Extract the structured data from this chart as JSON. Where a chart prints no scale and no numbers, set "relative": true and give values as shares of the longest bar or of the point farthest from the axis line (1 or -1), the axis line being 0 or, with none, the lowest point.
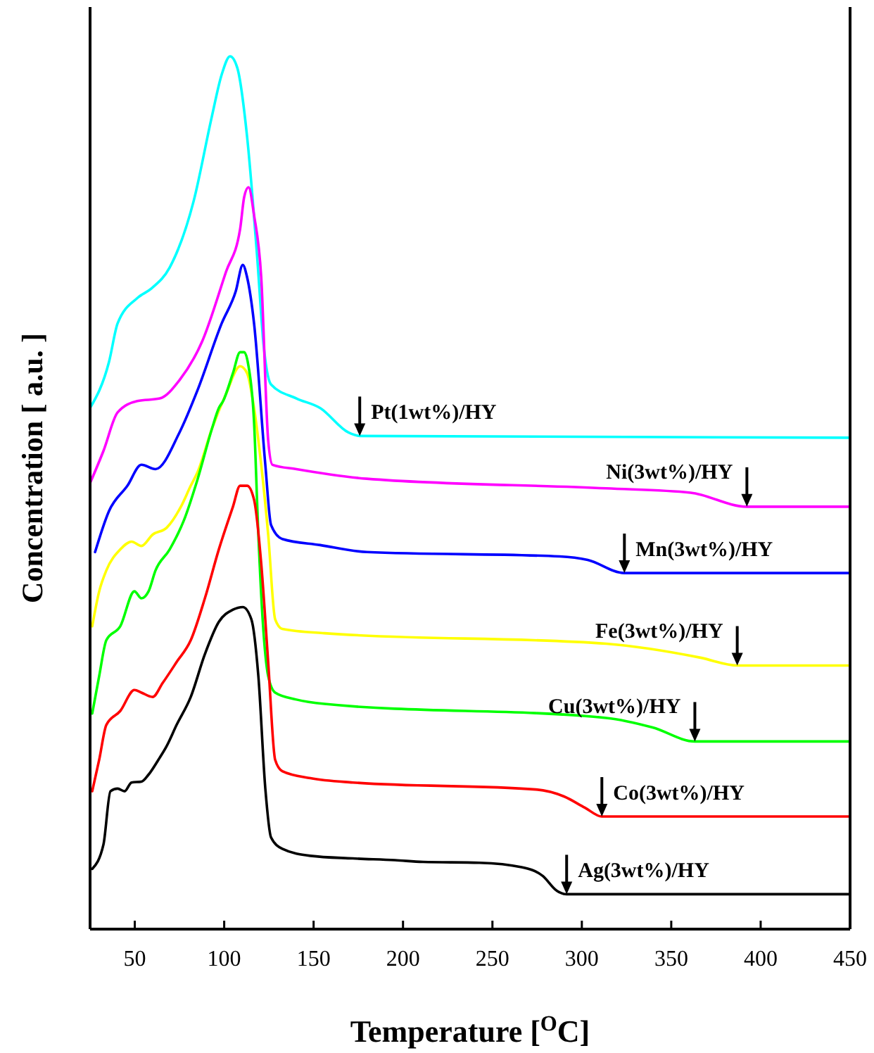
{
  "chart_data": {
    "type": "line",
    "relative": true,
    "xlabel": "Temperature [$^{O}$C]",
    "ylabel": "Concentration [ a.u. ]",
    "xlim": [
      25,
      450
    ],
    "xticks": [
      50,
      100,
      150,
      200,
      250,
      300,
      350,
      400,
      450
    ],
    "grid": false,
    "marker": "none",
    "line_style": "solid",
    "series": [
      {
        "color": "#00ffff",
        "x": [
          25,
          35.6,
          40.4,
          51.4,
          59.3,
          69.5,
          82.9,
          93.1,
          98.6,
          103.3,
          107.3,
          112.8,
          118.3,
          122.2,
          126.2,
          140.4,
          153.7,
          169.5,
          175.8,
          450
        ],
        "values": [
          0.597,
          0.65,
          0.694,
          0.723,
          0.734,
          0.758,
          0.834,
          0.931,
          0.979,
          1,
          0.987,
          0.908,
          0.774,
          0.666,
          0.624,
          0.608,
          0.597,
          0.569,
          0.565,
          0.563
        ]
      },
      {
        "color": "#ff00ff",
        "x": [
          25,
          32.5,
          40.4,
          51.4,
          64,
          75,
          87.6,
          101,
          108.9,
          111.2,
          113.6,
          116.7,
          120.7,
          124.6,
          127,
          140.4,
          179.7,
          313.6,
          360.8,
          392.3,
          450
        ],
        "values": [
          0.511,
          0.548,
          0.592,
          0.605,
          0.608,
          0.629,
          0.673,
          0.753,
          0.802,
          0.839,
          0.85,
          0.818,
          0.747,
          0.56,
          0.532,
          0.527,
          0.516,
          0.505,
          0.5,
          0.484,
          0.484
        ]
      },
      {
        "color": "#0000ff",
        "x": [
          27.8,
          35.6,
          45.9,
          53.7,
          61.6,
          75,
          85.2,
          98.6,
          106.5,
          110.4,
          112.8,
          116.7,
          123,
          126.2,
          132.5,
          153.7,
          179.7,
          287.6,
          303.3,
          323.8,
          450
        ],
        "values": [
          0.432,
          0.479,
          0.508,
          0.532,
          0.527,
          0.569,
          0.618,
          0.694,
          0.731,
          0.761,
          0.747,
          0.694,
          0.532,
          0.463,
          0.447,
          0.44,
          0.432,
          0.427,
          0.423,
          0.408,
          0.408
        ]
      },
      {
        "color": "#ffff00",
        "x": [
          26.2,
          30.1,
          34.1,
          41.9,
          48.2,
          53.7,
          60,
          67.9,
          75.8,
          81.3,
          85.2,
          93.1,
          101,
          108.9,
          112.8,
          116.7,
          120.7,
          124.6,
          128.5,
          132.5,
          156.1,
          313.6,
          366.4,
          386.9,
          450
        ],
        "values": [
          0.347,
          0.387,
          0.411,
          0.435,
          0.444,
          0.439,
          0.452,
          0.46,
          0.484,
          0.508,
          0.524,
          0.573,
          0.613,
          0.645,
          0.637,
          0.597,
          0.532,
          0.452,
          0.355,
          0.344,
          0.339,
          0.327,
          0.311,
          0.302,
          0.302
        ]
      },
      {
        "color": "#00ff00",
        "x": [
          26.2,
          30.1,
          34.1,
          41.9,
          49.8,
          53.7,
          57.7,
          61.6,
          69.5,
          77.4,
          85.2,
          93.1,
          97,
          99.4,
          104.9,
          108.9,
          111.2,
          113.6,
          116.7,
          119.1,
          121.5,
          124.6,
          128.5,
          140.4,
          156.1,
          313.6,
          339.6,
          363.2,
          450
        ],
        "values": [
          0.247,
          0.29,
          0.331,
          0.347,
          0.387,
          0.379,
          0.387,
          0.411,
          0.435,
          0.468,
          0.516,
          0.573,
          0.597,
          0.605,
          0.637,
          0.661,
          0.661,
          0.645,
          0.581,
          0.452,
          0.355,
          0.29,
          0.271,
          0.263,
          0.258,
          0.242,
          0.231,
          0.215,
          0.215
        ]
      },
      {
        "color": "#ff0000",
        "x": [
          26.2,
          30.1,
          34.1,
          41.9,
          49.8,
          53.7,
          60,
          65.6,
          73.4,
          81.3,
          89.2,
          97,
          104.9,
          108.9,
          112.8,
          116.7,
          120.7,
          124.6,
          128.5,
          132.5,
          148.2,
          171.9,
          274.2,
          290,
          301.8,
          311.2,
          450
        ],
        "values": [
          0.158,
          0.194,
          0.234,
          0.25,
          0.274,
          0.271,
          0.266,
          0.282,
          0.306,
          0.331,
          0.379,
          0.435,
          0.484,
          0.508,
          0.508,
          0.492,
          0.419,
          0.306,
          0.194,
          0.181,
          0.173,
          0.168,
          0.16,
          0.152,
          0.139,
          0.129,
          0.129
        ]
      },
      {
        "color": "#000000",
        "x": [
          26.2,
          32.5,
          36.4,
          40.4,
          44.3,
          48.2,
          53.7,
          57.7,
          63.2,
          67.9,
          73.4,
          81.3,
          89.2,
          97,
          104.9,
          110.4,
          115.2,
          119.1,
          123,
          126.2,
          132.5,
          148.2,
          171.9,
          195.5,
          211.2,
          242.7,
          266.3,
          278.1,
          286,
          291.5,
          450
        ],
        "values": [
          0.069,
          0.097,
          0.158,
          0.161,
          0.158,
          0.168,
          0.169,
          0.177,
          0.194,
          0.21,
          0.234,
          0.266,
          0.315,
          0.352,
          0.366,
          0.369,
          0.355,
          0.29,
          0.161,
          0.105,
          0.092,
          0.084,
          0.081,
          0.079,
          0.077,
          0.076,
          0.071,
          0.061,
          0.044,
          0.04,
          0.04
        ]
      }
    ],
    "annotations": [
      {
        "text": "Pt(1wt%)/HY",
        "x": 175.8,
        "y": 0.565
      },
      {
        "text": "Ni(3wt%)/HY",
        "x": 392.3,
        "y": 0.484
      },
      {
        "text": "Mn(3wt%)/HY",
        "x": 323.8,
        "y": 0.408
      },
      {
        "text": "Fe(3wt%)/HY",
        "x": 386.9,
        "y": 0.302
      },
      {
        "text": "Cu(3wt%)/HY",
        "x": 363.2,
        "y": 0.215
      },
      {
        "text": "Co(3wt%)/HY",
        "x": 311.2,
        "y": 0.129
      },
      {
        "text": "Ag(3wt%)/HY",
        "x": 291.5,
        "y": 0.04
      }
    ]
  }
}
